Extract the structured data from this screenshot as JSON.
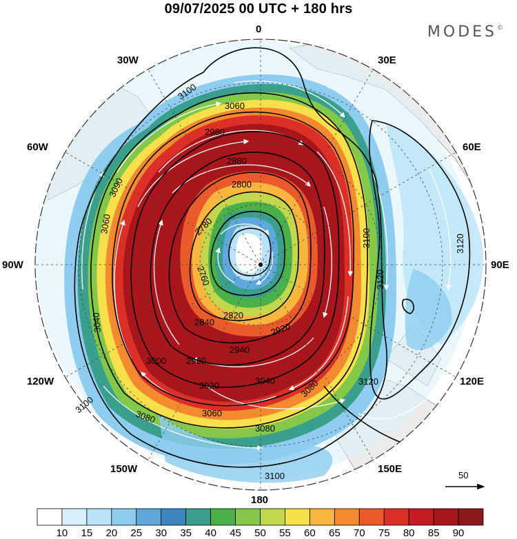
{
  "header": {
    "title": "09/07/2025  00 UTC  + 180 hrs",
    "brand": "MODES",
    "brand_mark": "©"
  },
  "longitude_labels": [
    "0",
    "30E",
    "60E",
    "90E",
    "120E",
    "150E",
    "180",
    "150W",
    "120W",
    "90W",
    "60W",
    "30W"
  ],
  "colorbar": {
    "ticks": [
      "10",
      "15",
      "20",
      "25",
      "30",
      "35",
      "40",
      "45",
      "50",
      "55",
      "60",
      "65",
      "70",
      "75",
      "80",
      "85",
      "90"
    ],
    "colors": [
      "#ffffff",
      "#d8f0fc",
      "#b9e3f8",
      "#8fcdf0",
      "#5fa8dc",
      "#3e86c0",
      "#3a9f8c",
      "#49b04a",
      "#84c84a",
      "#c2d74c",
      "#f7e04b",
      "#f8b63f",
      "#f38a30",
      "#eb5a2a",
      "#db2f27",
      "#c31d23",
      "#a8161c",
      "#8c1a1a"
    ]
  },
  "wind_reference": {
    "value": "50",
    "arrow_icon": "right-arrow-icon"
  },
  "contours": {
    "labels": [
      "3100",
      "3060",
      "2980",
      "2880",
      "2800",
      "2780",
      "2760",
      "3090",
      "3060",
      "3040",
      "2840",
      "2820",
      "2920",
      "3000",
      "2960",
      "2940",
      "3020",
      "3040",
      "3080",
      "3060",
      "3080",
      "3100",
      "3120",
      "3120",
      "3100",
      "3120",
      "3100",
      "3080"
    ]
  },
  "map": {
    "projection": "polar-stereographic",
    "center_marker": "pole-marker"
  }
}
